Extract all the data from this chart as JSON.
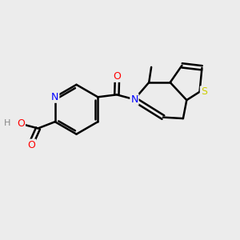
{
  "background_color": "#ececec",
  "bond_color": "#000000",
  "atom_colors": {
    "N": "#0000ff",
    "O": "#ff0000",
    "S": "#cccc00",
    "H": "#888888",
    "C": "#000000"
  },
  "figsize": [
    3.0,
    3.0
  ],
  "dpi": 100
}
